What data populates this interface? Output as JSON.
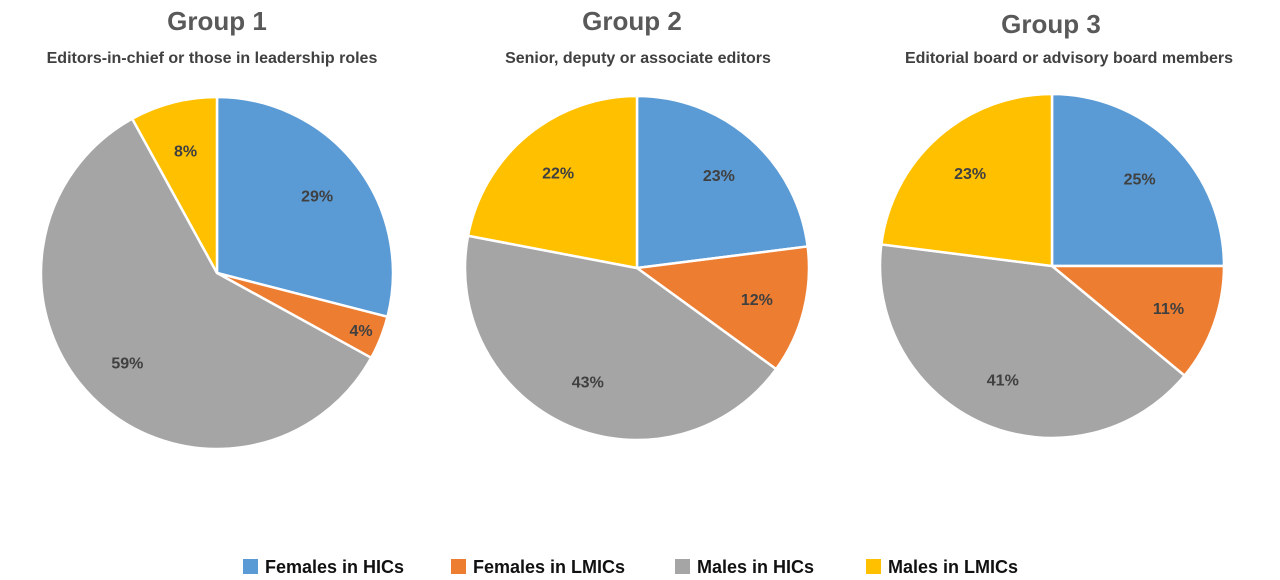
{
  "chart_data": [
    {
      "type": "pie",
      "title": "Group 1",
      "subtitle": "Editors-in-chief or those in leadership roles",
      "categories": [
        "Females in HICs",
        "Females in LMICs",
        "Males in HICs",
        "Males in LMICs"
      ],
      "values": [
        29,
        4,
        59,
        8
      ],
      "labels": [
        "29%",
        "4%",
        "59%",
        "8%"
      ]
    },
    {
      "type": "pie",
      "title": "Group 2",
      "subtitle": "Senior, deputy or associate editors",
      "categories": [
        "Females in HICs",
        "Females in LMICs",
        "Males in HICs",
        "Males in LMICs"
      ],
      "values": [
        23,
        12,
        43,
        22
      ],
      "labels": [
        "23%",
        "12%",
        "43%",
        "22%"
      ]
    },
    {
      "type": "pie",
      "title": "Group 3",
      "subtitle": "Editorial board or advisory board members",
      "categories": [
        "Females in HICs",
        "Females in LMICs",
        "Males in HICs",
        "Males in LMICs"
      ],
      "values": [
        25,
        11,
        41,
        23
      ],
      "labels": [
        "25%",
        "11%",
        "41%",
        "23%"
      ]
    }
  ],
  "legend": {
    "position": "bottom",
    "items": [
      {
        "label": "Females in HICs",
        "color": "#5B9BD5"
      },
      {
        "label": "Females in LMICs",
        "color": "#ED7D31"
      },
      {
        "label": "Males in HICs",
        "color": "#A5A5A5"
      },
      {
        "label": "Males in LMICs",
        "color": "#FFC000"
      }
    ]
  },
  "colors": [
    "#5B9BD5",
    "#ED7D31",
    "#A5A5A5",
    "#FFC000"
  ]
}
